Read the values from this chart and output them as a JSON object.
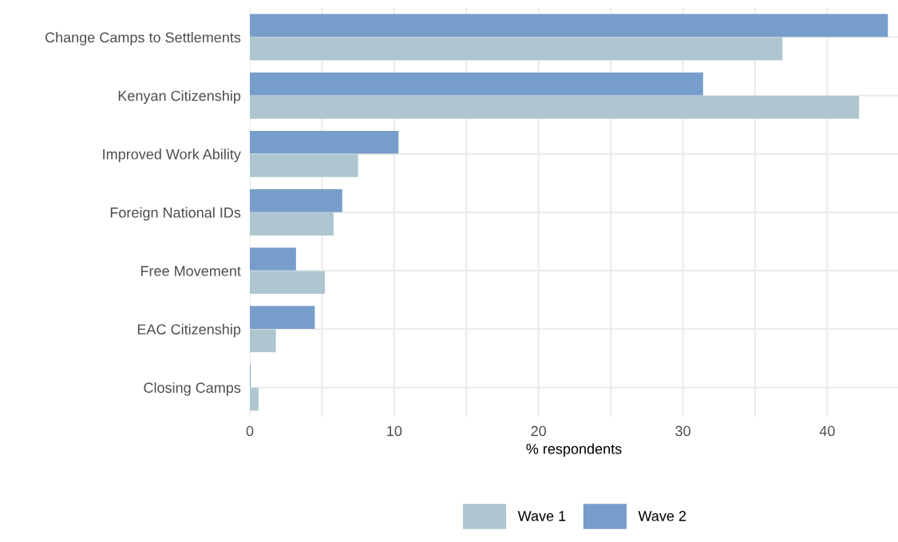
{
  "chart_data": {
    "type": "bar",
    "orientation": "horizontal",
    "xlabel": "% respondents",
    "categories": [
      "Change Camps to Settlements",
      "Kenyan Citizenship",
      "Improved Work Ability",
      "Foreign National IDs",
      "Free Movement",
      "EAC Citizenship",
      "Closing Camps"
    ],
    "series": [
      {
        "name": "Wave 1",
        "color": "#aec6cf",
        "values": [
          36.9,
          42.2,
          7.5,
          5.8,
          5.2,
          1.8,
          0.6
        ]
      },
      {
        "name": "Wave 2",
        "color": "#779ecb",
        "values": [
          44.2,
          31.4,
          10.3,
          6.4,
          3.2,
          4.5,
          0.05
        ]
      }
    ],
    "xlim": [
      0,
      44.9
    ],
    "xticks": [
      0,
      {
        "value": 5,
        "label": null
      },
      10,
      {
        "value": 15,
        "label": null
      },
      20,
      {
        "value": 25,
        "label": null
      },
      30,
      {
        "value": 35,
        "label": null
      },
      40
    ],
    "grid": true,
    "legend": "bottom"
  }
}
